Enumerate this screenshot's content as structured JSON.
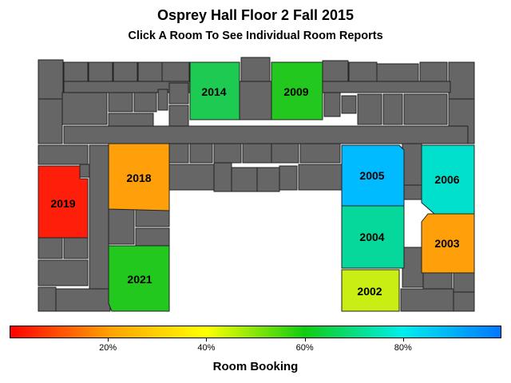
{
  "header": {
    "title": "Osprey Hall Floor 2 Fall 2015",
    "subtitle": "Click A Room To See Individual Room Reports"
  },
  "rooms": [
    {
      "id": "2014",
      "label": "2014",
      "booking_pct": 70,
      "color": "#1ecb52"
    },
    {
      "id": "2009",
      "label": "2009",
      "booking_pct": 64,
      "color": "#22c81e"
    },
    {
      "id": "2018",
      "label": "2018",
      "booking_pct": 33,
      "color": "#ffa00a"
    },
    {
      "id": "2019",
      "label": "2019",
      "booking_pct": 3,
      "color": "#ff1e0a"
    },
    {
      "id": "2005",
      "label": "2005",
      "booking_pct": 88,
      "color": "#00bbff"
    },
    {
      "id": "2006",
      "label": "2006",
      "booking_pct": 80,
      "color": "#00e0cc"
    },
    {
      "id": "2004",
      "label": "2004",
      "booking_pct": 75,
      "color": "#06d89c"
    },
    {
      "id": "2003",
      "label": "2003",
      "booking_pct": 33,
      "color": "#ffa00a"
    },
    {
      "id": "2021",
      "label": "2021",
      "booking_pct": 64,
      "color": "#22c81e"
    },
    {
      "id": "2002",
      "label": "2002",
      "booking_pct": 52,
      "color": "#c8ee14"
    }
  ],
  "legend": {
    "label": "Room Booking",
    "ticks": [
      "20%",
      "40%",
      "60%",
      "80%"
    ],
    "colors": [
      "#ff0000",
      "#ffa000",
      "#ffff00",
      "#11cc11",
      "#00eeee",
      "#0077ff"
    ]
  }
}
